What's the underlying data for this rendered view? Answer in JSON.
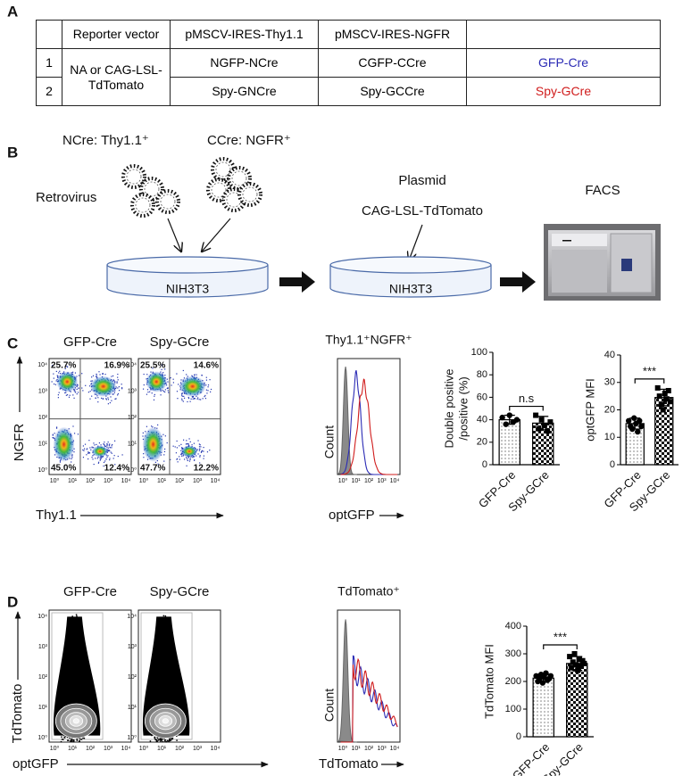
{
  "panel_labels": [
    "A",
    "B",
    "C",
    "D"
  ],
  "table": {
    "header": [
      "Reporter vector",
      "pMSCV-IRES-Thy1.1",
      "pMSCV-IRES-NGFR"
    ],
    "reporter": "NA or CAG-LSL-TdTomato",
    "rows": [
      {
        "index": "1",
        "cells": [
          "NGFP-NCre",
          "CGFP-CCre",
          "GFP-Cre"
        ],
        "color": "#2b2bb5"
      },
      {
        "index": "2",
        "cells": [
          "Spy-GNCre",
          "Spy-GCCre",
          "Spy-GCre"
        ],
        "color": "#d01c1c"
      }
    ]
  },
  "diagram": {
    "ncre": "NCre: Thy1.1⁺",
    "ccre": "CCre: NGFR⁺",
    "retrovirus": "Retrovirus",
    "plasmid": "Plasmid",
    "reporter": "CAG-LSL-TdTomato",
    "facs": "FACS",
    "dishes": [
      "NIH3T3",
      "NIH3T3"
    ]
  },
  "panel_c": {
    "plots": [
      {
        "title": "GFP-Cre",
        "color": "#2b2bb5",
        "quadrants": [
          "25.7%",
          "16.9%",
          "45.0%",
          "12.4%"
        ]
      },
      {
        "title": "Spy-GCre",
        "color": "#d01c1c",
        "quadrants": [
          "25.5%",
          "14.6%",
          "47.7%",
          "12.2%"
        ]
      }
    ],
    "tick_labels": [
      "10⁰",
      "10¹",
      "10²",
      "10³",
      "10⁴"
    ],
    "y_label": "NGFR",
    "x_label": "Thy1.1",
    "histogram": {
      "title": "Thy1.1⁺NGFR⁺",
      "y_label": "Count",
      "x_label": "optGFP",
      "tick_labels": [
        "10⁰",
        "10¹",
        "10²",
        "10³",
        "10⁴"
      ]
    }
  },
  "panel_d": {
    "plots": [
      {
        "title": "GFP-Cre",
        "color": "#2b2bb5"
      },
      {
        "title": "Spy-GCre",
        "color": "#d01c1c"
      }
    ],
    "tick_labels": [
      "10⁰",
      "10¹",
      "10²",
      "10³",
      "10⁴"
    ],
    "y_label": "TdTomato",
    "x_label": "optGFP",
    "histogram": {
      "title": "TdTomato⁺",
      "y_label": "Count",
      "x_label": "TdTomato",
      "tick_labels": [
        "10⁰",
        "10¹",
        "10²",
        "10³",
        "10⁴"
      ]
    }
  },
  "chart_data": [
    {
      "type": "bar",
      "y_label": [
        "Double positive",
        "/positive (%)"
      ],
      "categories": [
        "GFP-Cre",
        "Spy-GCre"
      ],
      "values": [
        40,
        37
      ],
      "errors": [
        4,
        6
      ],
      "points": [
        [
          42,
          36,
          44,
          38,
          40
        ],
        [
          44,
          32,
          40,
          35,
          30,
          38
        ]
      ],
      "ylim": [
        0,
        100
      ],
      "yticks": [
        0,
        20,
        40,
        60,
        80,
        100
      ],
      "annotation": "n.s",
      "patterns": [
        "dots",
        "checker"
      ],
      "markers": [
        "circle",
        "square"
      ],
      "color": "#000000"
    },
    {
      "type": "bar",
      "y_label": [
        "optGFP MFI"
      ],
      "categories": [
        "GFP-Cre",
        "Spy-GCre"
      ],
      "values": [
        15,
        24.5
      ],
      "errors": [
        2,
        3
      ],
      "points": [
        [
          16,
          14,
          13,
          17,
          15,
          12,
          16,
          14
        ],
        [
          28,
          25,
          22,
          20,
          26,
          24,
          27,
          23
        ]
      ],
      "ylim": [
        0,
        40
      ],
      "yticks": [
        0,
        10,
        20,
        30,
        40
      ],
      "annotation": "***",
      "patterns": [
        "dots",
        "checker"
      ],
      "markers": [
        "circle",
        "square"
      ],
      "color": "#000000"
    },
    {
      "type": "bar",
      "y_label": [
        "TdTomato MFI"
      ],
      "categories": [
        "GFP-Cre",
        "Spy-GCre"
      ],
      "values": [
        212,
        265
      ],
      "errors": [
        15,
        25
      ],
      "points": [
        [
          220,
          200,
          210,
          225,
          195,
          215,
          230,
          205,
          210,
          220
        ],
        [
          290,
          250,
          270,
          300,
          260,
          240,
          280,
          255,
          275,
          265
        ]
      ],
      "ylim": [
        0,
        400
      ],
      "yticks": [
        0,
        100,
        200,
        300,
        400
      ],
      "annotation": "***",
      "patterns": [
        "dots",
        "checker"
      ],
      "markers": [
        "circle",
        "square"
      ],
      "color": "#000000"
    }
  ]
}
